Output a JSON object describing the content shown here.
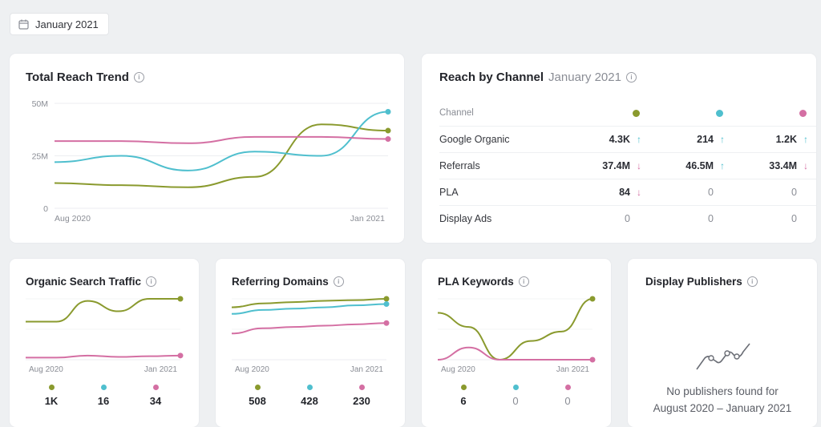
{
  "date_picker": {
    "label": "January 2021",
    "icon": "calendar-icon"
  },
  "colors": {
    "green": "#8a9a2e",
    "blue": "#4fbfce",
    "pink": "#d46fa3",
    "grid": "#eceef1"
  },
  "total_reach": {
    "title": "Total Reach Trend",
    "chart_data": {
      "type": "line",
      "title": "Total Reach Trend",
      "x_labels": [
        "Aug 2020",
        "Jan 2021"
      ],
      "y_ticks": [
        "50M",
        "25M",
        "0"
      ],
      "ylim": [
        0,
        50
      ],
      "series": [
        {
          "color": "#8a9a2e",
          "values": [
            12,
            11,
            10,
            15,
            40,
            37
          ]
        },
        {
          "color": "#4fbfce",
          "values": [
            22,
            25,
            18,
            27,
            25,
            46
          ]
        },
        {
          "color": "#d46fa3",
          "values": [
            32,
            32,
            31,
            34,
            34,
            33
          ]
        }
      ]
    }
  },
  "reach_by_channel": {
    "title": "Reach by Channel",
    "subtitle": "January 2021",
    "header": "Channel",
    "rows": [
      {
        "name": "Google Organic",
        "values": [
          "4.3K",
          "214",
          "1.2K"
        ],
        "trend": [
          "up",
          "up",
          "up"
        ]
      },
      {
        "name": "Referrals",
        "values": [
          "37.4M",
          "46.5M",
          "33.4M"
        ],
        "trend": [
          "down",
          "up",
          "down"
        ]
      },
      {
        "name": "PLA",
        "values": [
          "84",
          "0",
          "0"
        ],
        "trend": [
          "down",
          "",
          ""
        ]
      },
      {
        "name": "Display Ads",
        "values": [
          "0",
          "0",
          "0"
        ],
        "trend": [
          "",
          "",
          ""
        ]
      }
    ]
  },
  "organic_search": {
    "title": "Organic Search Traffic",
    "x_labels": [
      "Aug 2020",
      "Jan 2021"
    ],
    "stats": [
      "1K",
      "16",
      "34"
    ],
    "chart_data": {
      "type": "line",
      "series": [
        {
          "color": "#8a9a2e",
          "values": [
            55,
            55,
            85,
            70,
            88,
            88
          ]
        },
        {
          "color": "#d46fa3",
          "values": [
            3,
            3,
            6,
            4,
            5,
            6
          ]
        }
      ]
    }
  },
  "referring_domains": {
    "title": "Referring Domains",
    "x_labels": [
      "Aug 2020",
      "Jan 2021"
    ],
    "stats": [
      "508",
      "428",
      "230"
    ],
    "chart_data": {
      "type": "line",
      "series": [
        {
          "color": "#8a9a2e",
          "values": [
            80,
            86,
            88,
            90,
            91,
            93
          ]
        },
        {
          "color": "#4fbfce",
          "values": [
            70,
            76,
            78,
            80,
            83,
            85
          ]
        },
        {
          "color": "#d46fa3",
          "values": [
            40,
            48,
            50,
            52,
            54,
            56
          ]
        }
      ]
    }
  },
  "pla_keywords": {
    "title": "PLA Keywords",
    "x_labels": [
      "Aug 2020",
      "Jan 2021"
    ],
    "stats": [
      "6",
      "0",
      "0"
    ],
    "chart_data": {
      "type": "line",
      "series": [
        {
          "color": "#8a9a2e",
          "values": [
            5,
            3.5,
            0,
            2,
            3,
            6.5
          ]
        },
        {
          "color": "#d46fa3",
          "values": [
            0,
            1.3,
            0,
            0,
            0,
            0
          ]
        }
      ]
    }
  },
  "display_publishers": {
    "title": "Display Publishers",
    "empty_line1": "No publishers found for",
    "empty_line2": "August 2020 – January 2021"
  }
}
